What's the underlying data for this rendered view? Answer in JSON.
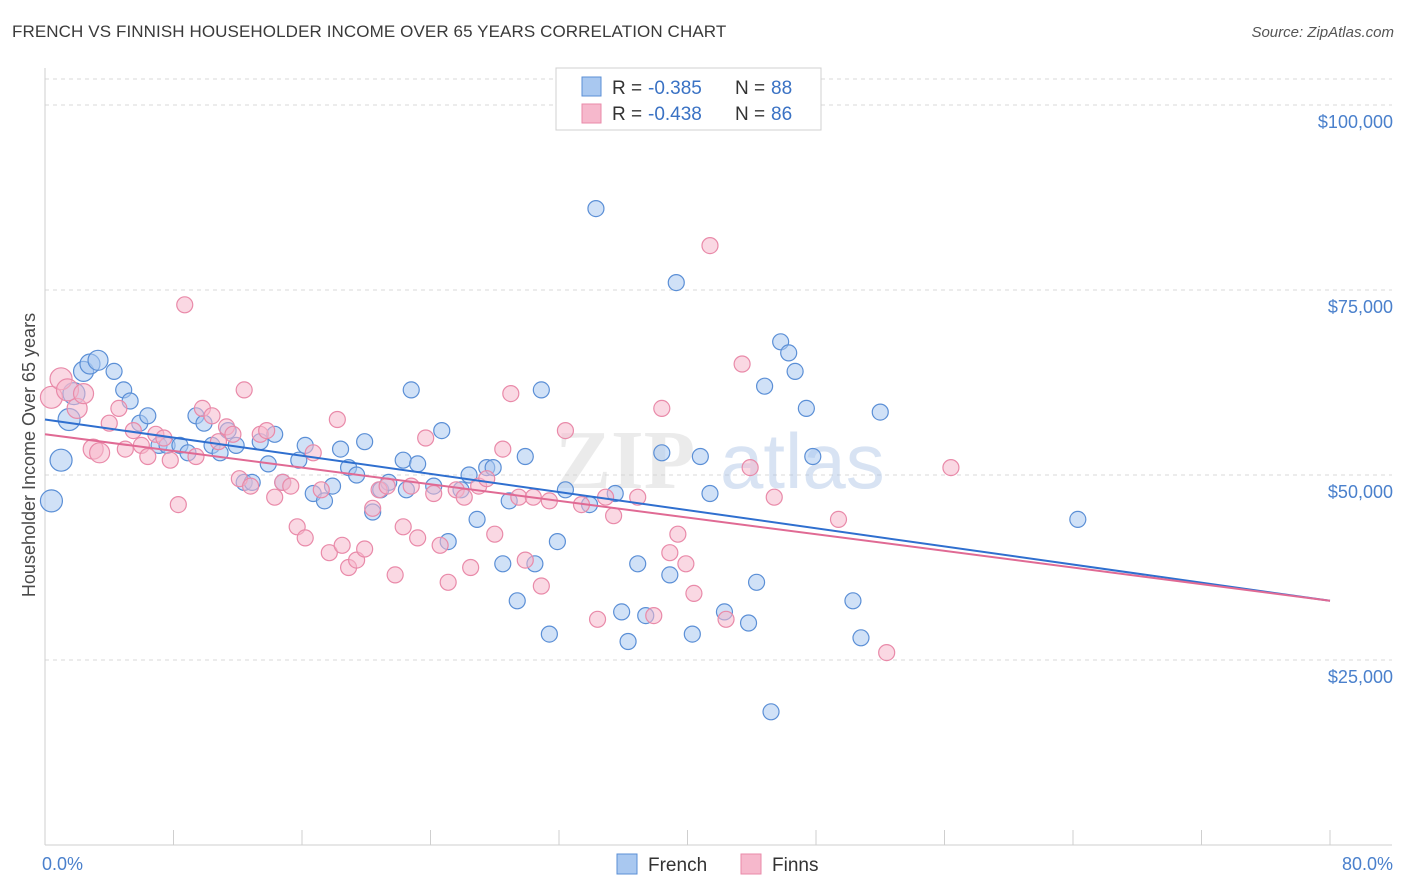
{
  "header": {
    "title": "FRENCH VS FINNISH HOUSEHOLDER INCOME OVER 65 YEARS CORRELATION CHART",
    "source": "Source: ZipAtlas.com"
  },
  "watermark": {
    "zip": "ZIP",
    "atlas": "atlas"
  },
  "colors": {
    "french_fill": "#a9c8f0",
    "french_stroke": "#5b8fd6",
    "french_line": "#2f6fcf",
    "finns_fill": "#f6b8cc",
    "finns_stroke": "#e98aa9",
    "finns_line": "#e06a94",
    "grid": "#d8d8d8",
    "axis_text": "#4a80cc"
  },
  "legend": {
    "rows": [
      {
        "r_label": "R = ",
        "r_value": "-0.385",
        "n_label": "N = ",
        "n_value": "88"
      },
      {
        "r_label": "R = ",
        "r_value": "-0.438",
        "n_label": "N = ",
        "n_value": "86"
      }
    ]
  },
  "chart_data": {
    "type": "scatter",
    "ylabel": "Householder Income Over 65 years",
    "xlim": [
      0,
      80
    ],
    "ylim": [
      0,
      105000
    ],
    "x_tick_labels": [
      "0.0%",
      "80.0%"
    ],
    "y_ticks": [
      {
        "value": 25000,
        "label": "$25,000"
      },
      {
        "value": 50000,
        "label": "$50,000"
      },
      {
        "value": 75000,
        "label": "$75,000"
      },
      {
        "value": 100000,
        "label": "$100,000"
      }
    ],
    "grid": "horizontal-dashed",
    "legend_position": "top-center",
    "series": [
      {
        "name": "French",
        "trend": {
          "x0": 0,
          "y0": 57500,
          "x1": 80,
          "y1": 33000
        },
        "points": [
          [
            0.4,
            46500
          ],
          [
            1,
            52000
          ],
          [
            1.5,
            57500
          ],
          [
            1.8,
            61000
          ],
          [
            2.4,
            64000
          ],
          [
            2.8,
            65000
          ],
          [
            3.3,
            65500
          ],
          [
            4.3,
            64000
          ],
          [
            4.9,
            61500
          ],
          [
            5.3,
            60000
          ],
          [
            5.9,
            57000
          ],
          [
            6.4,
            58000
          ],
          [
            7.1,
            54000
          ],
          [
            7.6,
            54000
          ],
          [
            8.4,
            54000
          ],
          [
            8.9,
            53000
          ],
          [
            9.4,
            58000
          ],
          [
            9.9,
            57000
          ],
          [
            10.4,
            54000
          ],
          [
            10.9,
            53000
          ],
          [
            11.4,
            56000
          ],
          [
            11.9,
            54000
          ],
          [
            12.4,
            49000
          ],
          [
            12.9,
            49000
          ],
          [
            13.4,
            54500
          ],
          [
            13.9,
            51500
          ],
          [
            14.3,
            55500
          ],
          [
            14.8,
            49000
          ],
          [
            15.8,
            52000
          ],
          [
            16.2,
            54000
          ],
          [
            16.7,
            47500
          ],
          [
            17.4,
            46500
          ],
          [
            17.9,
            48500
          ],
          [
            18.4,
            53500
          ],
          [
            18.9,
            51000
          ],
          [
            19.4,
            50000
          ],
          [
            19.9,
            54500
          ],
          [
            20.4,
            45000
          ],
          [
            20.9,
            48000
          ],
          [
            21.4,
            49000
          ],
          [
            22.3,
            52000
          ],
          [
            22.5,
            48000
          ],
          [
            22.8,
            61500
          ],
          [
            23.2,
            51500
          ],
          [
            24.2,
            48500
          ],
          [
            24.7,
            56000
          ],
          [
            25.1,
            41000
          ],
          [
            25.9,
            48000
          ],
          [
            26.4,
            50000
          ],
          [
            26.9,
            44000
          ],
          [
            27.5,
            51000
          ],
          [
            27.9,
            51000
          ],
          [
            28.5,
            38000
          ],
          [
            28.9,
            46500
          ],
          [
            29.4,
            33000
          ],
          [
            29.9,
            52500
          ],
          [
            30.5,
            38000
          ],
          [
            30.9,
            61500
          ],
          [
            31.4,
            28500
          ],
          [
            31.9,
            41000
          ],
          [
            32.4,
            48000
          ],
          [
            33.9,
            46000
          ],
          [
            34.3,
            86000
          ],
          [
            35.5,
            47500
          ],
          [
            35.9,
            31500
          ],
          [
            36.3,
            27500
          ],
          [
            36.9,
            38000
          ],
          [
            37.4,
            31000
          ],
          [
            38.4,
            53000
          ],
          [
            38.9,
            36500
          ],
          [
            39.3,
            76000
          ],
          [
            40.3,
            28500
          ],
          [
            40.8,
            52500
          ],
          [
            41.4,
            47500
          ],
          [
            42.3,
            31500
          ],
          [
            43.8,
            30000
          ],
          [
            44.3,
            35500
          ],
          [
            44.8,
            62000
          ],
          [
            45.8,
            68000
          ],
          [
            46.3,
            66500
          ],
          [
            46.7,
            64000
          ],
          [
            45.2,
            18000
          ],
          [
            47.4,
            59000
          ],
          [
            50.3,
            33000
          ],
          [
            50.8,
            28000
          ],
          [
            52.0,
            58500
          ],
          [
            64.3,
            44000
          ],
          [
            47.8,
            52500
          ]
        ]
      },
      {
        "name": "Finns",
        "trend": {
          "x0": 0,
          "y0": 55500,
          "x1": 80,
          "y1": 33000
        },
        "points": [
          [
            0.4,
            60500
          ],
          [
            1,
            63000
          ],
          [
            1.4,
            61500
          ],
          [
            2.0,
            59000
          ],
          [
            2.4,
            61000
          ],
          [
            3.0,
            53500
          ],
          [
            3.4,
            53000
          ],
          [
            4.0,
            57000
          ],
          [
            4.6,
            59000
          ],
          [
            5.0,
            53500
          ],
          [
            5.5,
            56000
          ],
          [
            6.0,
            54000
          ],
          [
            6.4,
            52500
          ],
          [
            6.9,
            55500
          ],
          [
            7.4,
            55000
          ],
          [
            7.8,
            52000
          ],
          [
            8.3,
            46000
          ],
          [
            8.7,
            73000
          ],
          [
            9.4,
            52500
          ],
          [
            9.8,
            59000
          ],
          [
            10.4,
            58000
          ],
          [
            10.8,
            54500
          ],
          [
            11.3,
            56500
          ],
          [
            11.7,
            55500
          ],
          [
            12.1,
            49500
          ],
          [
            12.4,
            61500
          ],
          [
            12.8,
            48500
          ],
          [
            13.4,
            55500
          ],
          [
            13.8,
            56000
          ],
          [
            14.3,
            47000
          ],
          [
            14.8,
            49000
          ],
          [
            15.3,
            48500
          ],
          [
            15.7,
            43000
          ],
          [
            16.2,
            41500
          ],
          [
            16.7,
            53000
          ],
          [
            17.2,
            48000
          ],
          [
            17.7,
            39500
          ],
          [
            18.2,
            57500
          ],
          [
            18.5,
            40500
          ],
          [
            18.9,
            37500
          ],
          [
            19.4,
            38500
          ],
          [
            19.9,
            40000
          ],
          [
            20.4,
            45500
          ],
          [
            20.8,
            48000
          ],
          [
            21.3,
            48500
          ],
          [
            21.8,
            36500
          ],
          [
            22.3,
            43000
          ],
          [
            22.8,
            48500
          ],
          [
            23.2,
            41500
          ],
          [
            23.7,
            55000
          ],
          [
            24.2,
            47500
          ],
          [
            24.6,
            40500
          ],
          [
            25.1,
            35500
          ],
          [
            25.6,
            48000
          ],
          [
            26.1,
            47000
          ],
          [
            26.5,
            37500
          ],
          [
            27.0,
            48500
          ],
          [
            27.5,
            49500
          ],
          [
            28.0,
            42000
          ],
          [
            28.5,
            53500
          ],
          [
            29.0,
            61000
          ],
          [
            29.5,
            47000
          ],
          [
            29.9,
            38500
          ],
          [
            30.4,
            47000
          ],
          [
            30.9,
            35000
          ],
          [
            31.4,
            46500
          ],
          [
            32.4,
            56000
          ],
          [
            33.4,
            46000
          ],
          [
            34.4,
            30500
          ],
          [
            34.9,
            47000
          ],
          [
            35.4,
            44500
          ],
          [
            36.9,
            47000
          ],
          [
            37.9,
            31000
          ],
          [
            38.4,
            59000
          ],
          [
            38.9,
            39500
          ],
          [
            39.4,
            42000
          ],
          [
            39.9,
            38000
          ],
          [
            40.4,
            34000
          ],
          [
            41.4,
            81000
          ],
          [
            42.4,
            30500
          ],
          [
            43.4,
            65000
          ],
          [
            43.9,
            51000
          ],
          [
            45.4,
            47000
          ],
          [
            49.4,
            44000
          ],
          [
            52.4,
            26000
          ],
          [
            56.4,
            51000
          ]
        ]
      }
    ]
  },
  "bottom_legend": {
    "items": [
      "French",
      "Finns"
    ]
  }
}
